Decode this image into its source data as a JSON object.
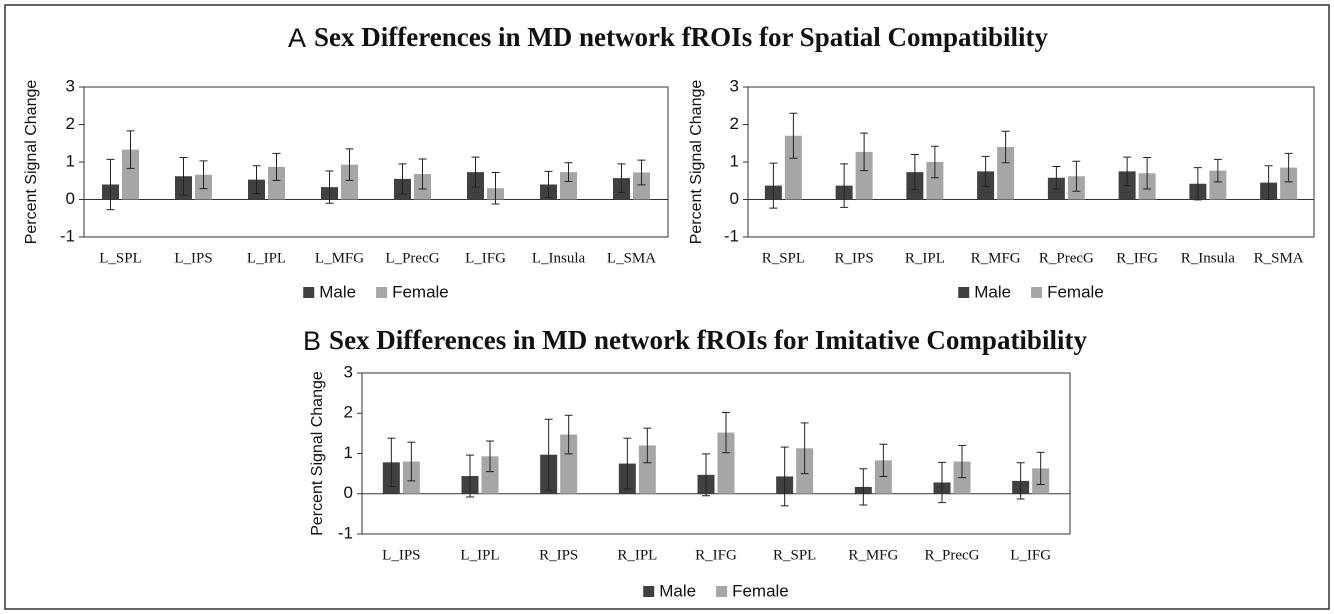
{
  "chart_data": [
    {
      "type": "bar",
      "panel": "A",
      "title": "Sex Differences in MD network fROIs for Spatial Compatibility",
      "ylabel": "Percent Signal Change",
      "categories": [
        "L_SPL",
        "L_IPS",
        "L_IPL",
        "L_MFG",
        "L_PrecG",
        "L_IFG",
        "L_Insula",
        "L_SMA"
      ],
      "series": [
        {
          "name": "Male",
          "color": "#404040",
          "values": [
            0.4,
            0.62,
            0.53,
            0.33,
            0.55,
            0.73,
            0.4,
            0.57
          ],
          "errors": [
            0.67,
            0.5,
            0.37,
            0.43,
            0.4,
            0.4,
            0.35,
            0.38
          ]
        },
        {
          "name": "Female",
          "color": "#a6a6a6",
          "values": [
            1.33,
            0.66,
            0.87,
            0.93,
            0.68,
            0.3,
            0.73,
            0.72
          ],
          "errors": [
            0.5,
            0.37,
            0.36,
            0.42,
            0.4,
            0.42,
            0.25,
            0.33
          ]
        }
      ],
      "ylim": [
        -1,
        3
      ],
      "yticks": [
        -1,
        0,
        1,
        2,
        3
      ],
      "legend": "bottom"
    },
    {
      "type": "bar",
      "ylabel": "Percent Signal Change",
      "categories": [
        "R_SPL",
        "R_IPS",
        "R_IPL",
        "R_MFG",
        "R_PrecG",
        "R_IFG",
        "R_Insula",
        "R_SMA"
      ],
      "series": [
        {
          "name": "Male",
          "color": "#404040",
          "values": [
            0.37,
            0.37,
            0.73,
            0.75,
            0.58,
            0.75,
            0.42,
            0.45
          ],
          "errors": [
            0.6,
            0.58,
            0.47,
            0.4,
            0.3,
            0.38,
            0.43,
            0.45
          ]
        },
        {
          "name": "Female",
          "color": "#a6a6a6",
          "values": [
            1.7,
            1.27,
            1.0,
            1.4,
            0.62,
            0.7,
            0.77,
            0.85
          ],
          "errors": [
            0.6,
            0.5,
            0.42,
            0.42,
            0.4,
            0.42,
            0.3,
            0.38
          ]
        }
      ],
      "ylim": [
        -1,
        3
      ],
      "yticks": [
        -1,
        0,
        1,
        2,
        3
      ],
      "legend": "bottom"
    },
    {
      "type": "bar",
      "panel": "B",
      "title": "Sex Differences in MD network fROIs for Imitative Compatibility",
      "ylabel": "Percent Signal Change",
      "categories": [
        "L_IPS",
        "L_IPL",
        "R_IPS",
        "R_IPL",
        "R_IFG",
        "R_SPL",
        "R_MFG",
        "R_PrecG",
        "L_IFG"
      ],
      "series": [
        {
          "name": "Male",
          "color": "#404040",
          "values": [
            0.78,
            0.44,
            0.97,
            0.75,
            0.47,
            0.43,
            0.17,
            0.28,
            0.32
          ],
          "errors": [
            0.6,
            0.52,
            0.88,
            0.63,
            0.52,
            0.73,
            0.45,
            0.5,
            0.45
          ]
        },
        {
          "name": "Female",
          "color": "#a6a6a6",
          "values": [
            0.8,
            0.93,
            1.47,
            1.2,
            1.52,
            1.13,
            0.83,
            0.8,
            0.63
          ],
          "errors": [
            0.48,
            0.38,
            0.48,
            0.43,
            0.5,
            0.63,
            0.4,
            0.4,
            0.4
          ]
        }
      ],
      "ylim": [
        -1,
        3
      ],
      "yticks": [
        -1,
        0,
        1,
        2,
        3
      ],
      "legend": "bottom"
    }
  ]
}
